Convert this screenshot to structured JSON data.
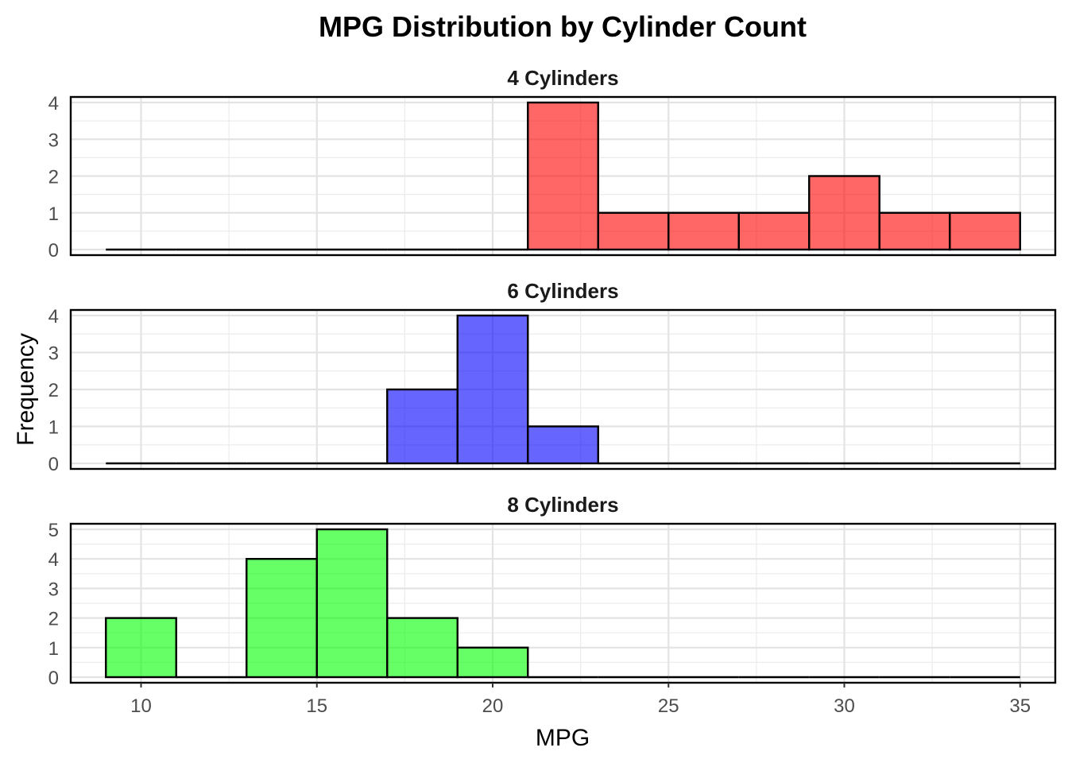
{
  "chart_data": {
    "type": "bar",
    "title": "MPG Distribution by Cylinder Count",
    "xlabel": "MPG",
    "ylabel": "Frequency",
    "xlim": [
      8,
      36
    ],
    "x_ticks": [
      10,
      15,
      20,
      25,
      30,
      35
    ],
    "bin_width": 2,
    "bin_start": 9,
    "bin_end": 35,
    "grid": true,
    "panels": [
      {
        "name": "4 Cylinders",
        "color": "#ff0000",
        "ylim": [
          0,
          4
        ],
        "y_ticks": [
          0,
          1,
          2,
          3,
          4
        ],
        "bins": [
          {
            "x0": 9,
            "x1": 11,
            "count": 0
          },
          {
            "x0": 11,
            "x1": 13,
            "count": 0
          },
          {
            "x0": 13,
            "x1": 15,
            "count": 0
          },
          {
            "x0": 15,
            "x1": 17,
            "count": 0
          },
          {
            "x0": 17,
            "x1": 19,
            "count": 0
          },
          {
            "x0": 19,
            "x1": 21,
            "count": 0
          },
          {
            "x0": 21,
            "x1": 23,
            "count": 4
          },
          {
            "x0": 23,
            "x1": 25,
            "count": 1
          },
          {
            "x0": 25,
            "x1": 27,
            "count": 1
          },
          {
            "x0": 27,
            "x1": 29,
            "count": 1
          },
          {
            "x0": 29,
            "x1": 31,
            "count": 2
          },
          {
            "x0": 31,
            "x1": 33,
            "count": 1
          },
          {
            "x0": 33,
            "x1": 35,
            "count": 1
          }
        ]
      },
      {
        "name": "6 Cylinders",
        "color": "#0000ff",
        "ylim": [
          0,
          4
        ],
        "y_ticks": [
          0,
          1,
          2,
          3,
          4
        ],
        "bins": [
          {
            "x0": 9,
            "x1": 11,
            "count": 0
          },
          {
            "x0": 11,
            "x1": 13,
            "count": 0
          },
          {
            "x0": 13,
            "x1": 15,
            "count": 0
          },
          {
            "x0": 15,
            "x1": 17,
            "count": 0
          },
          {
            "x0": 17,
            "x1": 19,
            "count": 2
          },
          {
            "x0": 19,
            "x1": 21,
            "count": 4
          },
          {
            "x0": 21,
            "x1": 23,
            "count": 1
          },
          {
            "x0": 23,
            "x1": 25,
            "count": 0
          },
          {
            "x0": 25,
            "x1": 27,
            "count": 0
          },
          {
            "x0": 27,
            "x1": 29,
            "count": 0
          },
          {
            "x0": 29,
            "x1": 31,
            "count": 0
          },
          {
            "x0": 31,
            "x1": 33,
            "count": 0
          },
          {
            "x0": 33,
            "x1": 35,
            "count": 0
          }
        ]
      },
      {
        "name": "8 Cylinders",
        "color": "#00ff00",
        "ylim": [
          0,
          5
        ],
        "y_ticks": [
          0,
          1,
          2,
          3,
          4,
          5
        ],
        "bins": [
          {
            "x0": 9,
            "x1": 11,
            "count": 2
          },
          {
            "x0": 11,
            "x1": 13,
            "count": 0
          },
          {
            "x0": 13,
            "x1": 15,
            "count": 4
          },
          {
            "x0": 15,
            "x1": 17,
            "count": 5
          },
          {
            "x0": 17,
            "x1": 19,
            "count": 2
          },
          {
            "x0": 19,
            "x1": 21,
            "count": 1
          },
          {
            "x0": 21,
            "x1": 23,
            "count": 0
          },
          {
            "x0": 23,
            "x1": 25,
            "count": 0
          },
          {
            "x0": 25,
            "x1": 27,
            "count": 0
          },
          {
            "x0": 27,
            "x1": 29,
            "count": 0
          },
          {
            "x0": 29,
            "x1": 31,
            "count": 0
          },
          {
            "x0": 31,
            "x1": 33,
            "count": 0
          },
          {
            "x0": 33,
            "x1": 35,
            "count": 0
          }
        ]
      }
    ]
  }
}
